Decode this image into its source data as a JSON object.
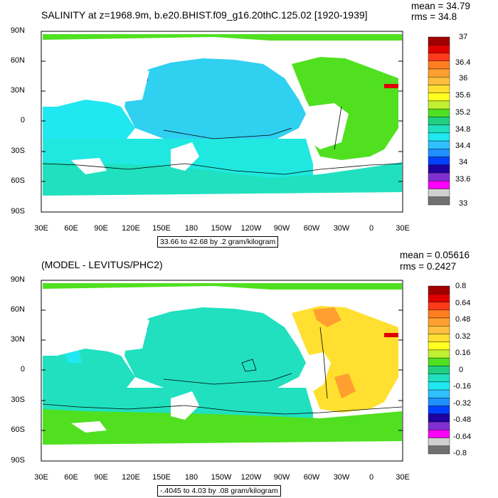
{
  "panels": [
    {
      "title": "SALINITY at z=1968.9m, b.e20.BHIST.f09_g16.20thC.125.02 [1920-1939]",
      "mean": "mean = 34.79",
      "rms": "rms = 34.8",
      "contour_info": "33.66 to 42.68 by .2 gram/kilogram",
      "lat_labels": [
        "90N",
        "60N",
        "30N",
        "0",
        "30S",
        "60S",
        "90S"
      ],
      "lon_labels": [
        "30E",
        "60E",
        "90E",
        "120E",
        "150E",
        "180",
        "150W",
        "120W",
        "90W",
        "60W",
        "30W",
        "0",
        "30E"
      ],
      "legend_labels": [
        "37",
        "36.4",
        "36",
        "35.6",
        "35.2",
        "34.8",
        "34.4",
        "34",
        "33.6",
        "33"
      ],
      "legend_colors": [
        "#a00000",
        "#e00000",
        "#ff3a1a",
        "#ff7f1f",
        "#ff9f2f",
        "#ffbf3f",
        "#ffe030",
        "#ffff20",
        "#c0f030",
        "#50e020",
        "#20d080",
        "#20e0c0",
        "#20e8f0",
        "#30c0ff",
        "#2090ff",
        "#0040ff",
        "#2000a0",
        "#8030d0",
        "#ff00ff",
        "#d0d0d0",
        "#707070"
      ]
    },
    {
      "title": "(MODEL - LEVITUS/PHC2)",
      "mean": "mean = 0.05616",
      "rms": "rms = 0.2427",
      "contour_info": "-.4045 to 4.03 by .08 gram/kilogram",
      "lat_labels": [
        "90N",
        "60N",
        "30N",
        "0",
        "30S",
        "60S",
        "90S"
      ],
      "lon_labels": [
        "30E",
        "60E",
        "90E",
        "120E",
        "150E",
        "180",
        "150W",
        "120W",
        "90W",
        "60W",
        "30W",
        "0",
        "30E"
      ],
      "legend_labels": [
        "0.8",
        "0.64",
        "0.48",
        "0.32",
        "0.16",
        "0",
        "-0.16",
        "-0.32",
        "-0.48",
        "-0.64",
        "-0.8"
      ],
      "legend_colors": [
        "#a00000",
        "#e00000",
        "#ff3a1a",
        "#ff7f1f",
        "#ff9f2f",
        "#ffbf3f",
        "#ffe030",
        "#ffff20",
        "#c0f030",
        "#50e020",
        "#20d080",
        "#20e0c0",
        "#20e8f0",
        "#30c0ff",
        "#2090ff",
        "#0040ff",
        "#2000a0",
        "#8030d0",
        "#ff00ff",
        "#d0d0d0",
        "#707070"
      ]
    }
  ]
}
